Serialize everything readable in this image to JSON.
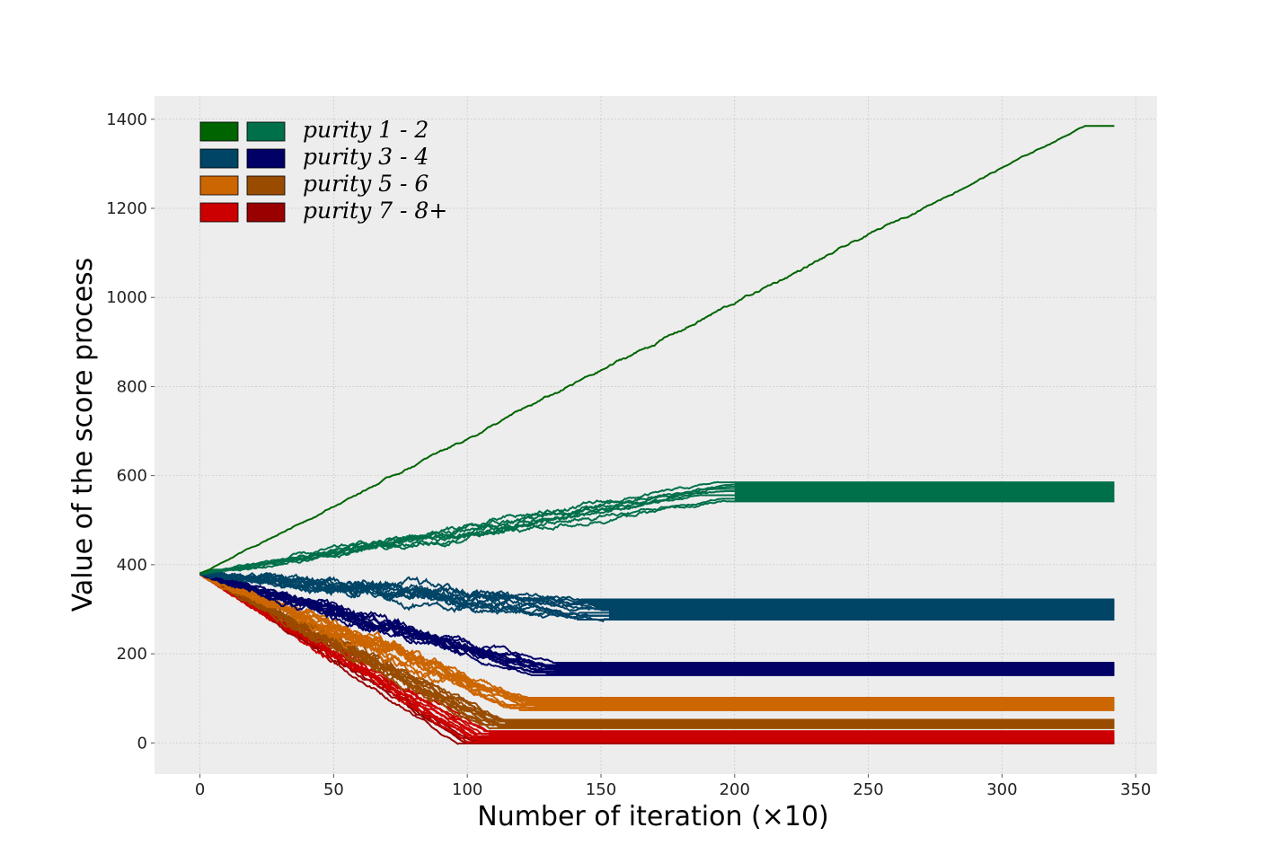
{
  "chart_data": {
    "type": "line",
    "title": "",
    "xlabel": "Number of iteration (×10)",
    "ylabel": "Value of the score process",
    "xlim": [
      -17,
      358
    ],
    "ylim": [
      -70,
      1452
    ],
    "x_ticks": [
      0,
      50,
      100,
      150,
      200,
      250,
      300,
      350
    ],
    "y_ticks": [
      0,
      200,
      400,
      600,
      800,
      1000,
      1200,
      1400
    ],
    "x_tick_labels": [
      "0",
      "50",
      "100",
      "150",
      "200",
      "250",
      "300",
      "350"
    ],
    "y_tick_labels": [
      "0",
      "200",
      "400",
      "600",
      "800",
      "1000",
      "1200",
      "1400"
    ],
    "grid": true,
    "legend_position": "top-left",
    "start_value": 380,
    "x_end": 342,
    "legend": [
      {
        "label": "purity 1 - 2",
        "colors": [
          "#006400",
          "#00704a"
        ]
      },
      {
        "label": "purity 3 - 4",
        "colors": [
          "#004466",
          "#000066"
        ]
      },
      {
        "label": "purity 5 - 6",
        "colors": [
          "#cc6600",
          "#994c00"
        ]
      },
      {
        "label": "purity 7 - 8+",
        "colors": [
          "#cc0000",
          "#990000"
        ]
      }
    ],
    "series": [
      {
        "name": "purity 1",
        "color": "#006400",
        "count": 1,
        "band_width": 0,
        "stop_x": 342,
        "final_values": [
          1385
        ]
      },
      {
        "name": "purity 2",
        "color": "#00704a",
        "count": 8,
        "band_width": 8,
        "stop_x": 200,
        "final_values": [
          542,
          548,
          556,
          565,
          570,
          575,
          580,
          585
        ]
      },
      {
        "name": "purity 3",
        "color": "#004466",
        "count": 30,
        "band_width": 18,
        "stop_x": 153,
        "final_values": [
          278,
          285,
          292,
          298,
          302,
          306,
          310,
          314,
          318,
          322
        ]
      },
      {
        "name": "purity 4",
        "color": "#000066",
        "count": 30,
        "band_width": 16,
        "stop_x": 133,
        "final_values": [
          152,
          158,
          163,
          167,
          171,
          175,
          180
        ]
      },
      {
        "name": "purity 5",
        "color": "#cc6600",
        "count": 30,
        "band_width": 20,
        "stop_x": 125,
        "final_values": [
          75,
          80,
          85,
          90,
          95,
          100
        ]
      },
      {
        "name": "purity 6",
        "color": "#994c00",
        "count": 30,
        "band_width": 16,
        "stop_x": 115,
        "final_values": [
          36,
          40,
          44,
          48,
          52
        ]
      },
      {
        "name": "purity 7 - 8+",
        "color": "#cc0000",
        "count": 10,
        "band_width": 10,
        "stop_x": 108,
        "final_values": [
          2,
          8,
          14,
          20,
          26
        ]
      },
      {
        "name": "purity 8+",
        "color": "#990000",
        "count": 4,
        "band_width": 6,
        "stop_x": 105,
        "final_values": [
          0,
          5,
          11
        ]
      }
    ]
  }
}
